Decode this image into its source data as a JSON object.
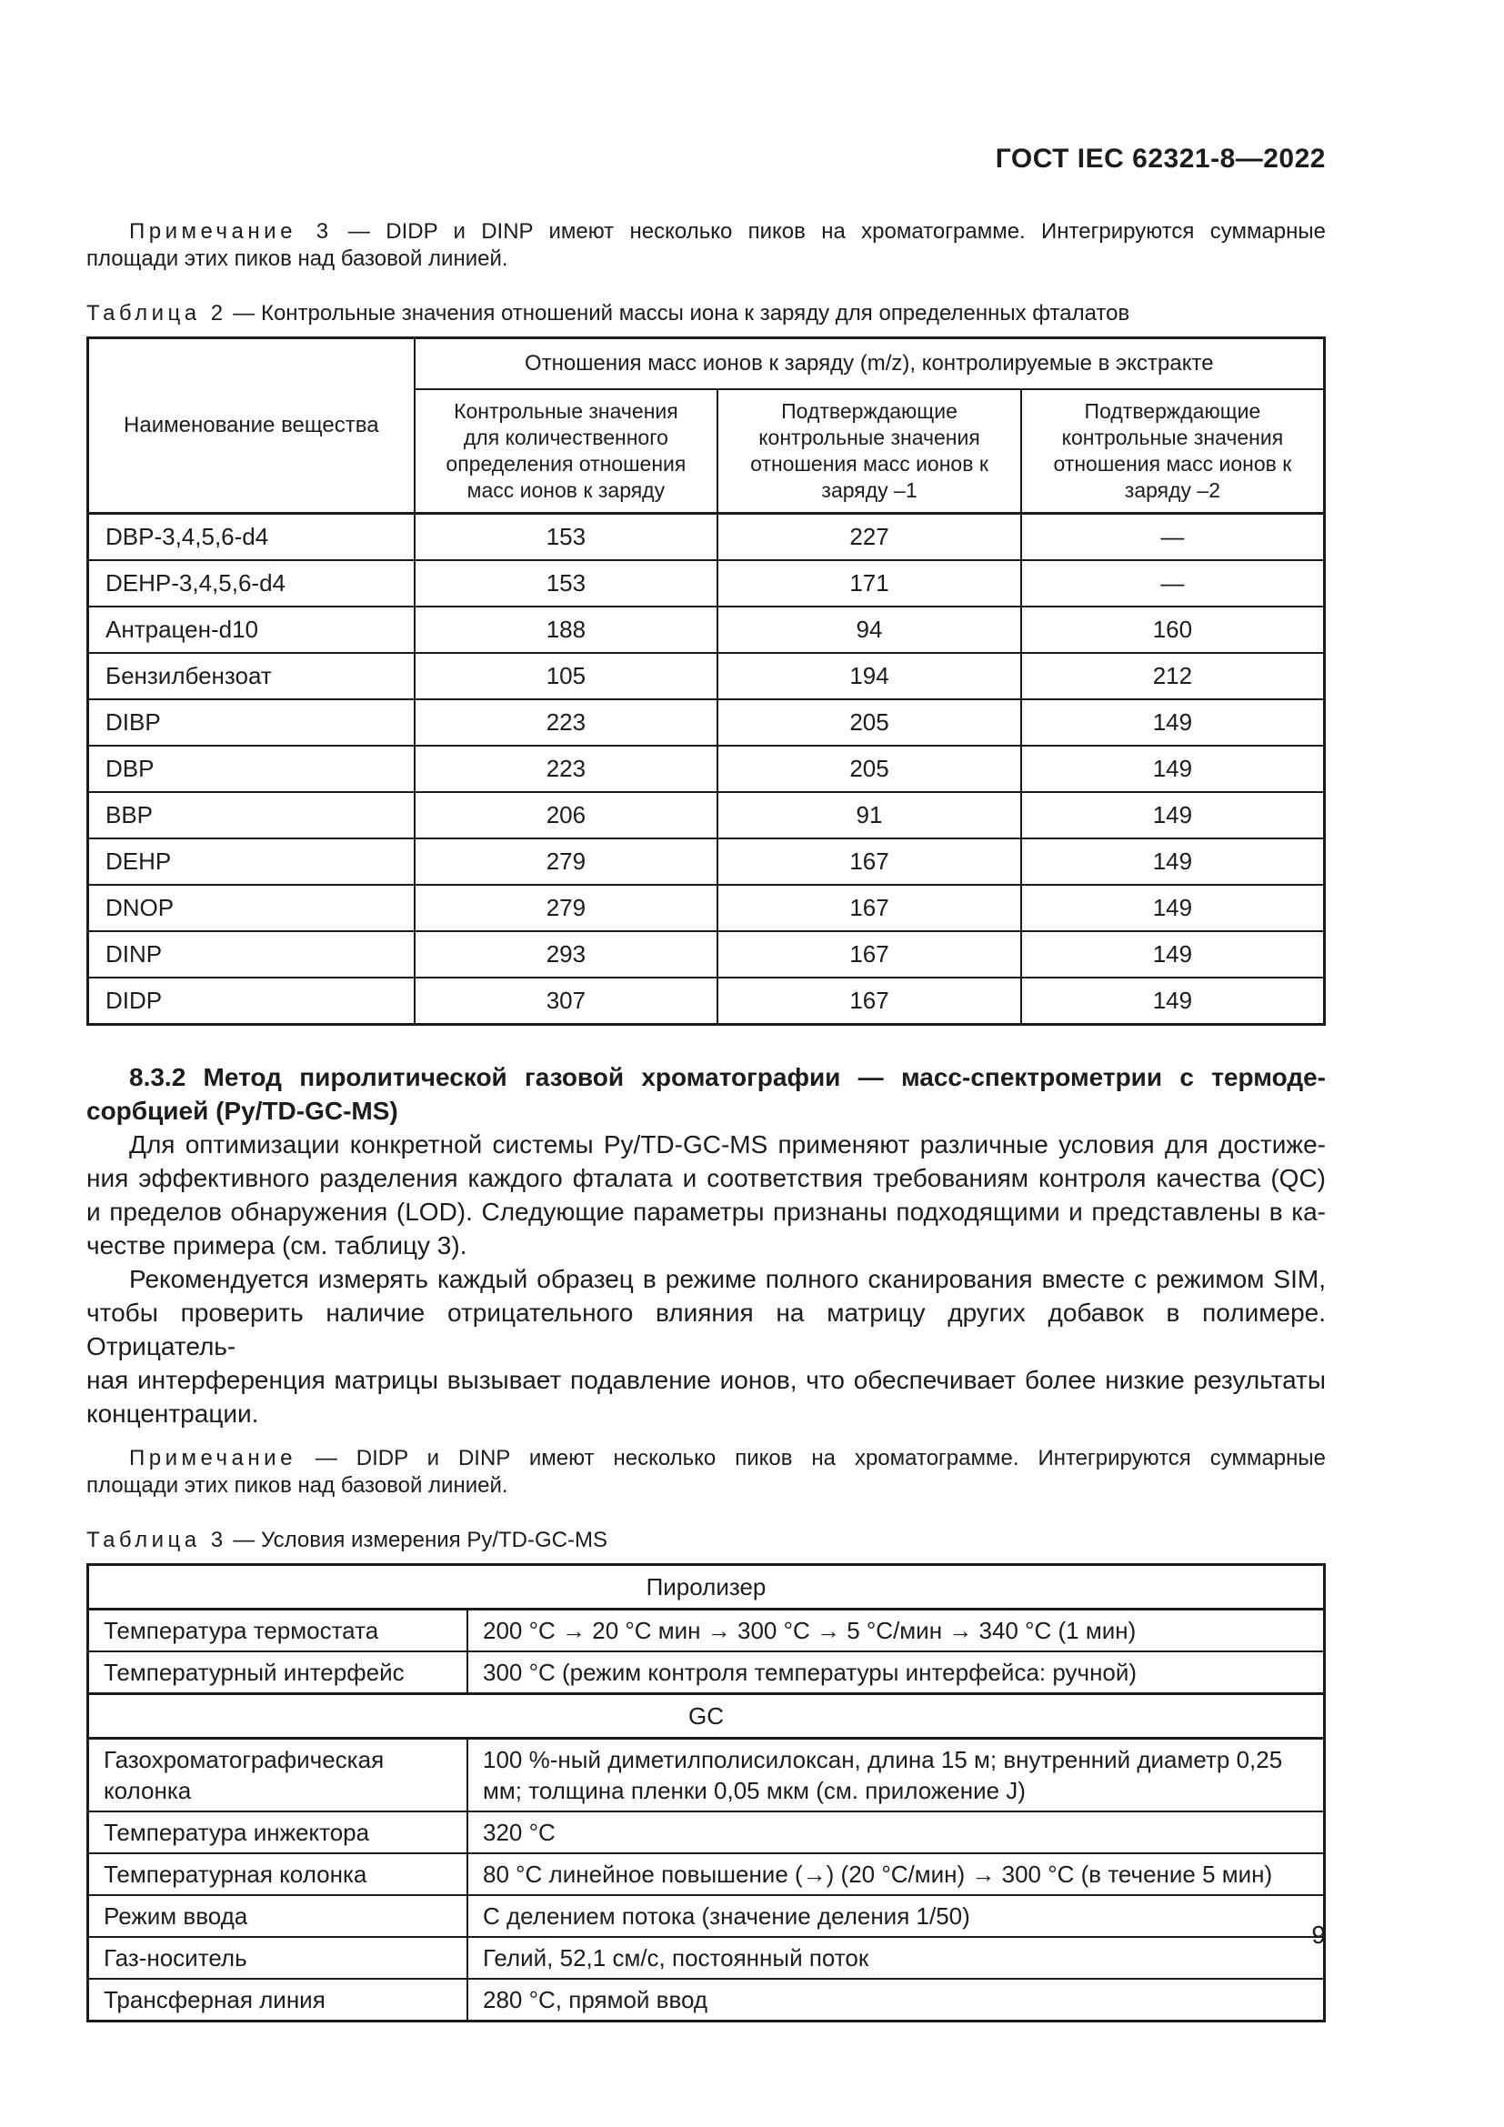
{
  "header": {
    "title": "ГОСТ IEC 62321-8—2022"
  },
  "note3": {
    "label": "Примечание 3",
    "line1": "— DIDP и DINP имеют несколько пиков на хроматограмме. Интегрируются суммарные",
    "line2": "площади этих пиков над базовой линией."
  },
  "table2": {
    "caption_label": "Таблица 2",
    "caption_text": "— Контрольные значения отношений массы иона к заряду для определенных фталатов",
    "col_substance": "Наименование вещества",
    "col_group": "Отношения масс ионов к заряду (m/z), контролируемые в экстракте",
    "col_quant": "Контрольные значения для количественного определения отношения масс ионов к заряду",
    "col_conf1": "Подтверждающие контрольные значения отношения масс ионов к заряду –1",
    "col_conf2": "Подтверждающие контрольные значения отношения масс ионов к заряду –2",
    "rows": [
      {
        "name": "DBP-3,4,5,6-d4",
        "quant": "153",
        "conf1": "227",
        "conf2": "—"
      },
      {
        "name": "DEHP-3,4,5,6-d4",
        "quant": "153",
        "conf1": "171",
        "conf2": "—"
      },
      {
        "name": "Антрацен-d10",
        "quant": "188",
        "conf1": "94",
        "conf2": "160"
      },
      {
        "name": "Бензилбензоат",
        "quant": "105",
        "conf1": "194",
        "conf2": "212"
      },
      {
        "name": "DIBP",
        "quant": "223",
        "conf1": "205",
        "conf2": "149"
      },
      {
        "name": "DBP",
        "quant": "223",
        "conf1": "205",
        "conf2": "149"
      },
      {
        "name": "BBP",
        "quant": "206",
        "conf1": "91",
        "conf2": "149"
      },
      {
        "name": "DEHP",
        "quant": "279",
        "conf1": "167",
        "conf2": "149"
      },
      {
        "name": "DNOP",
        "quant": "279",
        "conf1": "167",
        "conf2": "149"
      },
      {
        "name": "DINP",
        "quant": "293",
        "conf1": "167",
        "conf2": "149"
      },
      {
        "name": "DIDP",
        "quant": "307",
        "conf1": "167",
        "conf2": "149"
      }
    ]
  },
  "section": {
    "heading_line1": "8.3.2 Метод пиролитической газовой хроматографии — масс-спектрометрии с термоде-",
    "heading_line2": "сорбцией (Py/TD-GC-MS)",
    "para1_lines": [
      "Для оптимизации конкретной системы Py/TD-GC-MS применяют различные условия для достиже-",
      "ния эффективного разделения каждого фталата и соответствия требованиям контроля качества (QC)",
      "и пределов обнаружения (LOD). Следующие параметры признаны подходящими и представлены в ка-",
      "честве примера (см. таблицу 3)."
    ],
    "para2_lines": [
      "Рекомендуется измерять каждый образец в режиме полного сканирования вместе с режимом SIM,",
      "чтобы проверить наличие отрицательного влияния на матрицу других добавок в полимере. Отрицатель-",
      "ная интерференция матрицы вызывает подавление ионов, что обеспечивает более низкие результаты",
      "концентрации."
    ],
    "note": {
      "label": "Примечание",
      "line1": "— DIDP и DINP имеют несколько пиков на хроматограмме. Интегрируются суммарные",
      "line2": "площади этих пиков над базовой линией."
    }
  },
  "table3": {
    "caption_label": "Таблица 3",
    "caption_text": "— Условия измерения Py/TD-GC-MS",
    "section_pyrolyzer": "Пиролизер",
    "section_gc": "GC",
    "rows_pyrolyzer": [
      {
        "label": "Температура термостата",
        "value": "200 °C → 20 °C мин → 300 °C → 5 °C/мин → 340 °C (1 мин)"
      },
      {
        "label": "Температурный интерфейс",
        "value": "300 °C (режим контроля температуры интерфейса: ручной)"
      }
    ],
    "rows_gc": [
      {
        "label": "Газохроматографическая колонка",
        "value": "100 %-ный диметилполисилоксан, длина 15 м; внутренний диаметр 0,25 мм; толщина пленки 0,05 мкм (см. приложение J)"
      },
      {
        "label": "Температура инжектора",
        "value": "320 °C"
      },
      {
        "label": "Температурная колонка",
        "value": "80 °C линейное повышение (→) (20 °C/мин) → 300 °C (в течение 5 мин)"
      },
      {
        "label": "Режим ввода",
        "value": "С делением потока (значение деления 1/50)"
      },
      {
        "label": "Газ-носитель",
        "value": "Гелий, 52,1 см/с, постоянный поток"
      },
      {
        "label": "Трансферная линия",
        "value": "280 °C, прямой ввод"
      }
    ]
  },
  "footer": {
    "page_number": "9"
  }
}
